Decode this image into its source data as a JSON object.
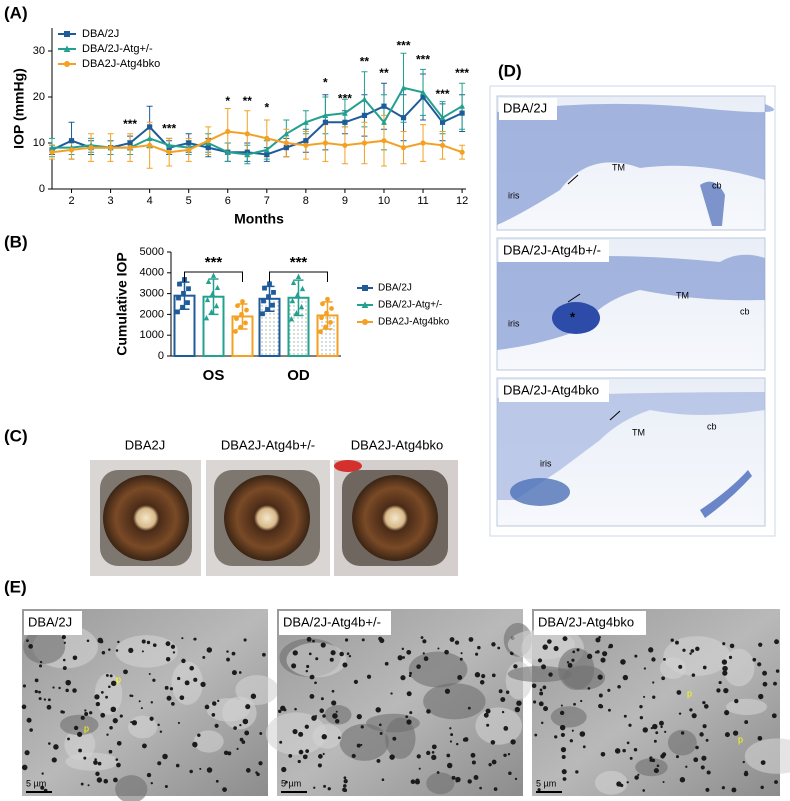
{
  "panel_labels": [
    "(A)",
    "(B)",
    "(C)",
    "(D)",
    "(E)"
  ],
  "chart_data": [
    {
      "type": "line",
      "y_label": "IOP (mmHg)",
      "x_label": "Months",
      "x": [
        1.5,
        2,
        2.5,
        3,
        3.5,
        4,
        4.5,
        5,
        5.5,
        6,
        6.5,
        7,
        7.5,
        8,
        8.5,
        9,
        9.5,
        10,
        10.5,
        11,
        11.5,
        12
      ],
      "xlim": [
        1.5,
        12.1
      ],
      "xticks": [
        2,
        3,
        4,
        5,
        6,
        7,
        8,
        9,
        10,
        11,
        12
      ],
      "ylim": [
        0,
        35
      ],
      "yticks": [
        0,
        10,
        20,
        30
      ],
      "legend": "top-left",
      "series": [
        {
          "name": "DBA/2J",
          "color": "#1f5b99",
          "marker": "square",
          "values": [
            8.5,
            10.5,
            9,
            9,
            10,
            13.5,
            9,
            10,
            9,
            8,
            8,
            7.5,
            9,
            10.5,
            14.5,
            14.5,
            16,
            18,
            15.5,
            20,
            14.5,
            16.5
          ],
          "errors": [
            1,
            4,
            1.5,
            1.5,
            1.5,
            4.5,
            1.5,
            2,
            2,
            2,
            2,
            1.5,
            2,
            2.5,
            6,
            2.5,
            4.5,
            5,
            5,
            5,
            4,
            4
          ]
        },
        {
          "name": "DBA/2J-Atg+/-",
          "color": "#23a08f",
          "marker": "triangle",
          "values": [
            9,
            9,
            9.5,
            9,
            9,
            11,
            9.5,
            9,
            10,
            8,
            7.5,
            8.5,
            12,
            14.5,
            16,
            16.5,
            19.5,
            14.5,
            22,
            21,
            15.5,
            18
          ],
          "errors": [
            2,
            1.5,
            1.5,
            1.5,
            1.5,
            2,
            1.5,
            1.5,
            2,
            2,
            2,
            2,
            3,
            2.5,
            4,
            3,
            6,
            6,
            7.5,
            5,
            3.5,
            5
          ]
        },
        {
          "name": "DBA2J-Atg4bko",
          "color": "#f4a123",
          "marker": "circle",
          "values": [
            8,
            8.5,
            9,
            9,
            9,
            9.5,
            8,
            8.5,
            10.5,
            12.5,
            12,
            11,
            10,
            9.5,
            10,
            9.5,
            10,
            10.5,
            9,
            10,
            9.5,
            8
          ],
          "errors": [
            1.5,
            2,
            3,
            3,
            3,
            5,
            3,
            2.5,
            3,
            5,
            5,
            4,
            3,
            3,
            4,
            4,
            4.5,
            5.5,
            3.5,
            4,
            3,
            1.5
          ]
        }
      ],
      "annotations": [
        {
          "x": 3.5,
          "y": 14,
          "text": "***"
        },
        {
          "x": 4.5,
          "y": 13,
          "text": "***"
        },
        {
          "x": 6,
          "y": 19,
          "text": "*"
        },
        {
          "x": 6.5,
          "y": 19,
          "text": "**"
        },
        {
          "x": 7,
          "y": 17.5,
          "text": "*"
        },
        {
          "x": 8.5,
          "y": 23,
          "text": "*"
        },
        {
          "x": 9,
          "y": 19.5,
          "text": "***"
        },
        {
          "x": 9.5,
          "y": 27.5,
          "text": "**"
        },
        {
          "x": 10,
          "y": 25,
          "text": "**"
        },
        {
          "x": 10.5,
          "y": 31,
          "text": "***"
        },
        {
          "x": 11,
          "y": 28,
          "text": "***"
        },
        {
          "x": 11.5,
          "y": 20.5,
          "text": "***"
        },
        {
          "x": 12,
          "y": 25,
          "text": "***"
        }
      ]
    },
    {
      "type": "bar",
      "y_label": "Cumulative IOP",
      "categories": [
        "OS",
        "OD"
      ],
      "ylim": [
        0,
        5000
      ],
      "yticks": [
        0,
        1000,
        2000,
        3000,
        4000,
        5000
      ],
      "legend": "right",
      "series": [
        {
          "name": "DBA/2J",
          "color": "#1f5b99",
          "marker": "square",
          "values": [
            2900,
            2750
          ],
          "errors": [
            650,
            600
          ]
        },
        {
          "name": "DBA/2J-Atg+/-",
          "color": "#23a08f",
          "marker": "triangle",
          "values": [
            2850,
            2800
          ],
          "errors": [
            850,
            850
          ]
        },
        {
          "name": "DBA2J-Atg4bko",
          "color": "#f4a123",
          "marker": "circle",
          "values": [
            1900,
            1950
          ],
          "errors": [
            600,
            650
          ]
        }
      ],
      "significance": [
        "***",
        "***"
      ]
    }
  ],
  "panel_c": {
    "labels": [
      "DBA2J",
      "DBA2J-Atg4b+/-",
      "DBA2J-Atg4bko"
    ]
  },
  "panel_d": {
    "images": [
      {
        "label": "DBA/2J",
        "annotations": [
          "TM",
          "iris",
          "cb"
        ]
      },
      {
        "label": "DBA/2J-Atg4b+/-",
        "annotations": [
          "TM",
          "iris",
          "cb",
          "*"
        ]
      },
      {
        "label": "DBA/2J-Atg4bko",
        "annotations": [
          "TM",
          "iris",
          "cb"
        ]
      }
    ]
  },
  "panel_e": {
    "images": [
      {
        "label": "DBA/2J",
        "annotations": [
          "p",
          "p"
        ],
        "scale_bar": "5 µm"
      },
      {
        "label": "DBA/2J-Atg4b+/-",
        "scale_bar": "5 µm"
      },
      {
        "label": "DBA/2J-Atg4bko",
        "annotations": [
          "p",
          "p"
        ],
        "scale_bar": "5 µm"
      }
    ]
  }
}
